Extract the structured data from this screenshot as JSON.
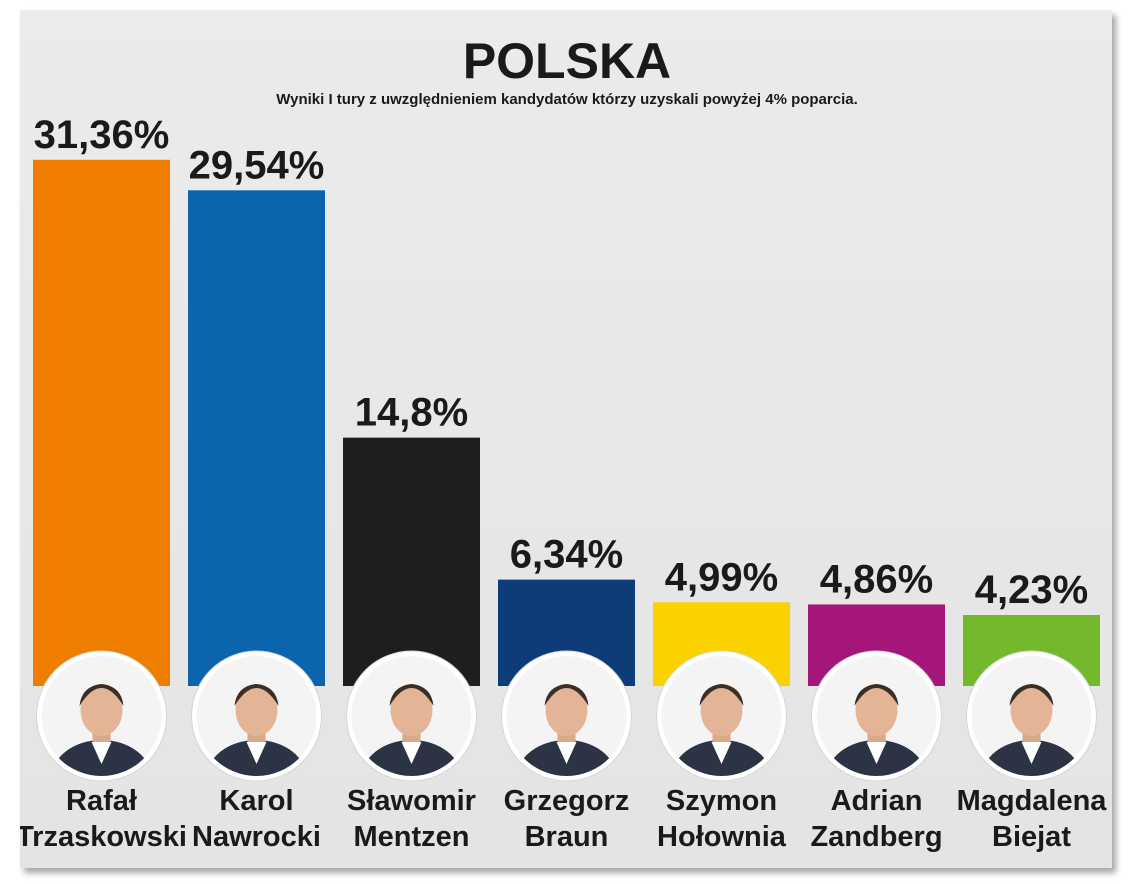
{
  "chart_data": {
    "type": "bar",
    "title": "POLSKA",
    "subtitle": "Wyniki I tury z uwzględnieniem kandydatów którzy uzyskali powyżej 4% poparcia.",
    "categories": [
      "Rafał Trzaskowski",
      "Karol Nawrocki",
      "Sławomir Mentzen",
      "Grzegorz Braun",
      "Szymon Hołownia",
      "Adrian Zandberg",
      "Magdalena Biejat"
    ],
    "name_lines": [
      [
        "Rafał",
        "Trzaskowski"
      ],
      [
        "Karol",
        "Nawrocki"
      ],
      [
        "Sławomir",
        "Mentzen"
      ],
      [
        "Grzegorz",
        "Braun"
      ],
      [
        "Szymon",
        "Hołownia"
      ],
      [
        "Adrian",
        "Zandberg"
      ],
      [
        "Magdalena",
        "Biejat"
      ]
    ],
    "values": [
      31.36,
      29.54,
      14.8,
      6.34,
      4.99,
      4.86,
      4.23
    ],
    "value_labels": [
      "31,36%",
      "29,54%",
      "14,8%",
      "6,34%",
      "4,99%",
      "4,86%",
      "4,23%"
    ],
    "colors": [
      "#ef7d00",
      "#0b64ad",
      "#1e1e1e",
      "#0d3c78",
      "#fcd100",
      "#a4167a",
      "#74b82b"
    ],
    "ylim": [
      0,
      35
    ],
    "grid": false,
    "legend": "none",
    "icons": [
      "person-photo-icon"
    ]
  }
}
